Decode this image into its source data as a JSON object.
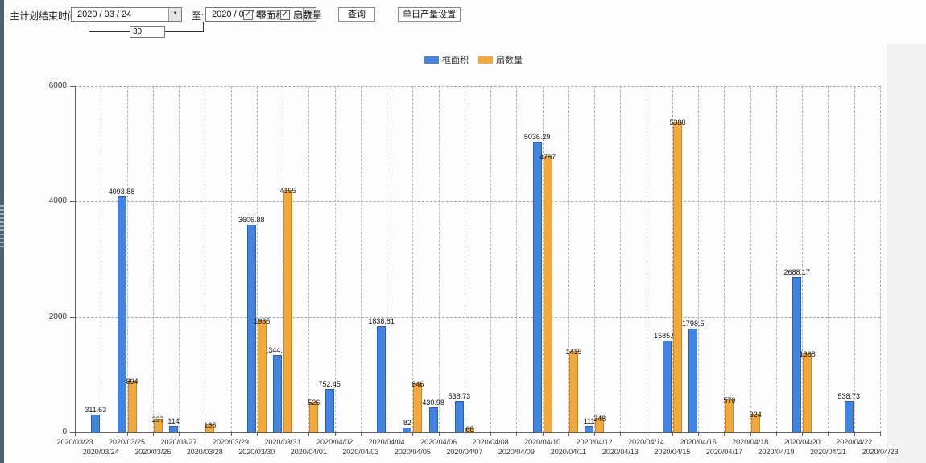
{
  "toolbar": {
    "label_main": "主计划结束时间:",
    "date_from": "2020 / 03 / 24",
    "label_to": "至:",
    "date_to": "2020 / 04 / 23",
    "interval_days": "30",
    "checkbox_frame_area": {
      "label": "框面积",
      "checked": true
    },
    "checkbox_sash_count": {
      "label": "扇数量",
      "checked": true
    },
    "query_button": "查询",
    "daily_output_button": "单日产量设置",
    "dropdown_glyph": "▼",
    "check_glyph": "✓"
  },
  "legend": [
    {
      "label": "框面积",
      "color": "#4285e0"
    },
    {
      "label": "扇数量",
      "color": "#f2a93c"
    }
  ],
  "chart_data": {
    "type": "bar",
    "title": "",
    "xlabel": "",
    "ylabel": "",
    "ylim": [
      0,
      6000
    ],
    "yticks": [
      0,
      2000,
      4000,
      6000
    ],
    "grid": true,
    "legend_position": "top",
    "categories": [
      "2020/03/23",
      "2020/03/24",
      "2020/03/25",
      "2020/03/26",
      "2020/03/27",
      "2020/03/28",
      "2020/03/29",
      "2020/03/30",
      "2020/03/31",
      "2020/04/01",
      "2020/04/02",
      "2020/04/03",
      "2020/04/04",
      "2020/04/05",
      "2020/04/06",
      "2020/04/07",
      "2020/04/08",
      "2020/04/09",
      "2020/04/10",
      "2020/04/11",
      "2020/04/12",
      "2020/04/13",
      "2020/04/14",
      "2020/04/15",
      "2020/04/16",
      "2020/04/17",
      "2020/04/18",
      "2020/04/19",
      "2020/04/20",
      "2020/04/21",
      "2020/04/22",
      "2020/04/23"
    ],
    "series": [
      {
        "name": "框面积",
        "color": "#4285e0",
        "border": "#2c5fb3",
        "values": [
          null,
          311.63,
          4093.88,
          null,
          114,
          null,
          null,
          3606.88,
          1344.95,
          null,
          752.45,
          null,
          1838.81,
          82,
          430.98,
          538.73,
          null,
          null,
          5036.29,
          null,
          111,
          null,
          null,
          1585.96,
          1798.5,
          null,
          null,
          null,
          2688.17,
          null,
          538.73,
          null
        ]
      },
      {
        "name": "扇数量",
        "color": "#f2a93c",
        "border": "#c8862a",
        "values": [
          null,
          null,
          894,
          237,
          null,
          136,
          null,
          1935,
          4195,
          526,
          null,
          null,
          null,
          846,
          null,
          68,
          null,
          null,
          4787,
          1415,
          248,
          null,
          null,
          5388,
          null,
          570,
          324,
          null,
          1368,
          null,
          null,
          null
        ]
      }
    ]
  }
}
